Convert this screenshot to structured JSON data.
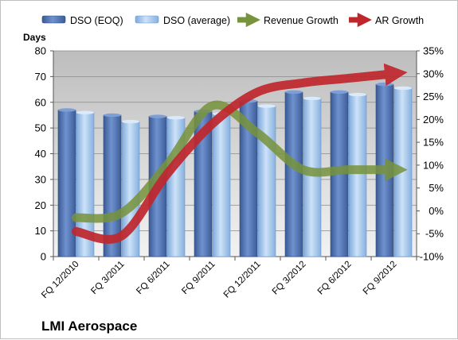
{
  "chart_data": {
    "type": "bar",
    "title": "LMI Aerospace",
    "ylabel": "Days",
    "categories": [
      "FQ 12/2010",
      "FQ 3/2011",
      "FQ 6/2011",
      "FQ 9/2011",
      "FQ 12/2011",
      "FQ 3/2012",
      "FQ 6/2012",
      "FQ 9/2012"
    ],
    "series": [
      {
        "name": "DSO (EOQ)",
        "type": "bar",
        "axis": "left",
        "values": [
          57,
          55,
          54.5,
          56.5,
          60.5,
          64,
          64,
          67
        ],
        "color": "#4f6fa8"
      },
      {
        "name": "DSO (average)",
        "type": "bar",
        "axis": "left",
        "values": [
          56,
          52.5,
          54,
          55.5,
          58.5,
          61.5,
          63,
          65.5
        ],
        "color": "#9cc3ea"
      },
      {
        "name": "Revenue Growth",
        "type": "line",
        "axis": "right",
        "unit": "%",
        "values": [
          -1.5,
          -0.5,
          10,
          23,
          17,
          9,
          9,
          9
        ],
        "color": "#77933c"
      },
      {
        "name": "AR Growth",
        "type": "line",
        "axis": "right",
        "unit": "%",
        "values": [
          -4.5,
          -5.5,
          8,
          19,
          26,
          28,
          29,
          30
        ],
        "color": "#c0272d"
      }
    ],
    "ylim": [
      0,
      80
    ],
    "yticks": [
      0,
      10,
      20,
      30,
      40,
      50,
      60,
      70,
      80
    ],
    "y2lim": [
      -10,
      35
    ],
    "y2ticks": [
      "-10%",
      "-5%",
      "0%",
      "5%",
      "10%",
      "15%",
      "20%",
      "25%",
      "30%",
      "35%"
    ],
    "grid": "horizontal",
    "legend": "top"
  }
}
